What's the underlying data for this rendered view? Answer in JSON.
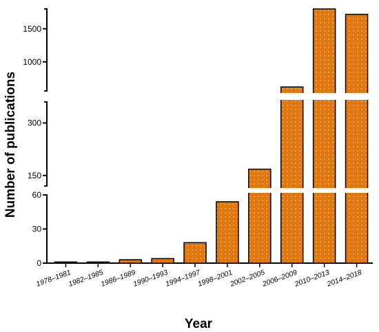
{
  "chart_data": {
    "type": "bar",
    "title": "",
    "xlabel": "Year",
    "ylabel": "Number of publications",
    "categories": [
      "1978–1981",
      "1982–1985",
      "1986–1989",
      "1990–1993",
      "1994–1997",
      "1998–2001",
      "2002–2005",
      "2006–2009",
      "2010–2013",
      "2014–2018"
    ],
    "values": [
      1,
      1,
      3,
      4,
      18,
      54,
      168,
      620,
      1808,
      1718
    ],
    "y_axis_broken": true,
    "y_segments": [
      {
        "range": [
          0,
          60
        ],
        "ticks": [
          0,
          30,
          60
        ]
      },
      {
        "range": [
          120,
          360
        ],
        "ticks": [
          150,
          300
        ]
      },
      {
        "range": [
          560,
          1800
        ],
        "ticks": [
          1000,
          1500
        ]
      }
    ],
    "bar_color": "#E07811",
    "bar_pattern": "dotted",
    "grid": false,
    "legend": "none"
  }
}
